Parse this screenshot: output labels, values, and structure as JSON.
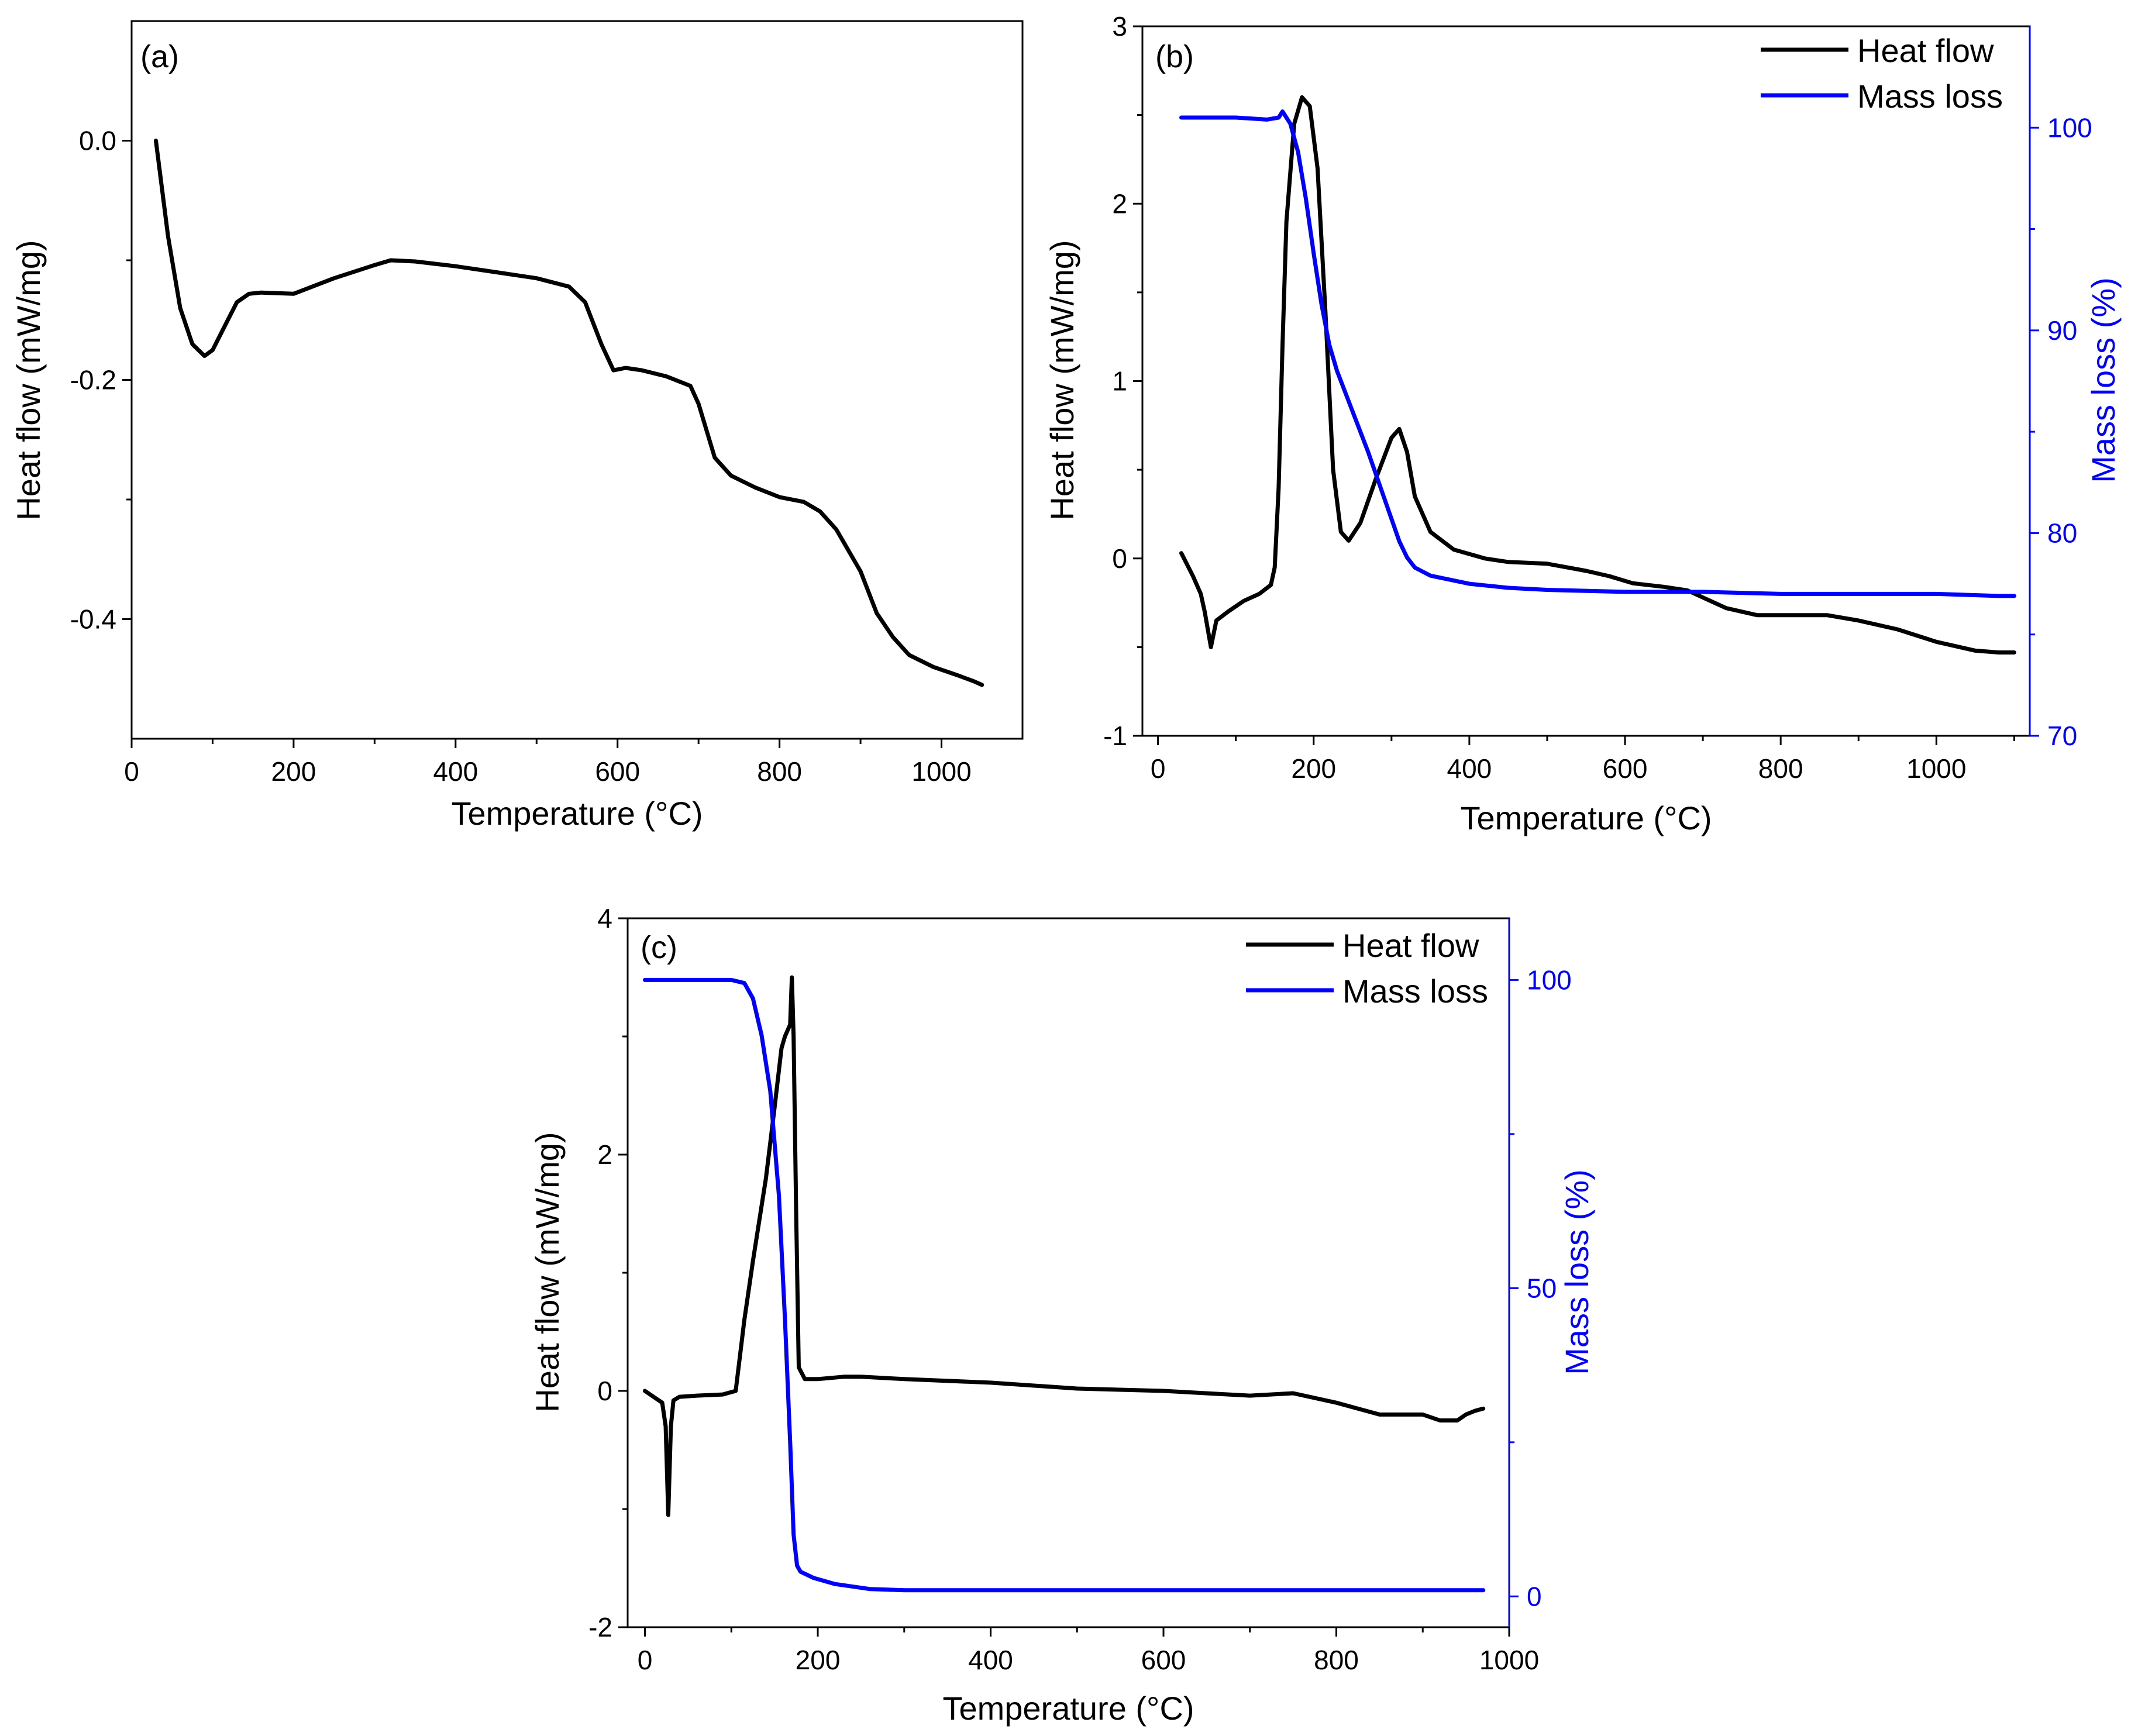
{
  "figure_title": "Thermal analysis (DSC/TGA) panels",
  "colors": {
    "heat_flow": "#000000",
    "mass_loss": "#0000FF",
    "axis": "#000000"
  },
  "chart_data": [
    {
      "type": "line",
      "panel_label": "(a)",
      "xlabel": "Temperature (°C)",
      "ylabel": "Heat flow (mW/mg)",
      "xlim": [
        0,
        1100
      ],
      "ylim": [
        -0.5,
        0.1
      ],
      "xticks": [
        0,
        200,
        400,
        600,
        800,
        1000
      ],
      "xtick_labels": [
        "0",
        "200",
        "400",
        "600",
        "800",
        "1000"
      ],
      "yticks": [
        0.0,
        -0.2,
        -0.4
      ],
      "ytick_labels": [
        "0.0",
        "-0.2",
        "-0.4"
      ],
      "legend": [],
      "series": [
        {
          "name": "Heat flow",
          "axis": "left",
          "color": "#000000",
          "x": [
            30,
            45,
            60,
            75,
            90,
            100,
            115,
            130,
            145,
            160,
            200,
            250,
            300,
            320,
            350,
            400,
            450,
            500,
            540,
            560,
            580,
            595,
            610,
            630,
            660,
            690,
            700,
            720,
            740,
            770,
            800,
            830,
            850,
            870,
            900,
            920,
            940,
            960,
            990,
            1020,
            1040,
            1050
          ],
          "y": [
            0.0,
            -0.08,
            -0.14,
            -0.17,
            -0.18,
            -0.175,
            -0.155,
            -0.135,
            -0.128,
            -0.127,
            -0.128,
            -0.115,
            -0.104,
            -0.1,
            -0.101,
            -0.105,
            -0.11,
            -0.115,
            -0.122,
            -0.135,
            -0.17,
            -0.192,
            -0.19,
            -0.192,
            -0.197,
            -0.205,
            -0.22,
            -0.265,
            -0.28,
            -0.29,
            -0.298,
            -0.302,
            -0.31,
            -0.325,
            -0.36,
            -0.395,
            -0.415,
            -0.43,
            -0.44,
            -0.447,
            -0.452,
            -0.455
          ]
        }
      ]
    },
    {
      "type": "line",
      "panel_label": "(b)",
      "xlabel": "Temperature (°C)",
      "ylabel": "Heat flow (mW/mg)",
      "y2label": "Mass loss (%)",
      "xlim": [
        -20,
        1120
      ],
      "ylim": [
        -1,
        3
      ],
      "y2lim": [
        70,
        105
      ],
      "xticks": [
        0,
        200,
        400,
        600,
        800,
        1000
      ],
      "xtick_labels": [
        "0",
        "200",
        "400",
        "600",
        "800",
        "1000"
      ],
      "yticks": [
        -1,
        0,
        1,
        2,
        3
      ],
      "ytick_labels": [
        "-1",
        "0",
        "1",
        "2",
        "3"
      ],
      "y2ticks": [
        70,
        80,
        90,
        100
      ],
      "y2tick_labels": [
        "70",
        "80",
        "90",
        "100"
      ],
      "legend": [
        "Heat flow",
        "Mass loss"
      ],
      "series": [
        {
          "name": "Heat flow",
          "axis": "left",
          "color": "#000000",
          "x": [
            30,
            45,
            55,
            60,
            68,
            75,
            90,
            110,
            130,
            145,
            150,
            155,
            160,
            165,
            175,
            185,
            195,
            205,
            215,
            225,
            235,
            245,
            260,
            280,
            300,
            310,
            320,
            330,
            350,
            380,
            420,
            450,
            500,
            550,
            580,
            610,
            650,
            680,
            700,
            730,
            770,
            820,
            860,
            900,
            950,
            1000,
            1050,
            1080,
            1100
          ],
          "y": [
            0.03,
            -0.1,
            -0.2,
            -0.3,
            -0.5,
            -0.35,
            -0.3,
            -0.24,
            -0.2,
            -0.15,
            -0.05,
            0.4,
            1.2,
            1.9,
            2.45,
            2.6,
            2.55,
            2.2,
            1.4,
            0.5,
            0.15,
            0.1,
            0.2,
            0.45,
            0.68,
            0.73,
            0.6,
            0.35,
            0.15,
            0.05,
            0.0,
            -0.02,
            -0.03,
            -0.07,
            -0.1,
            -0.14,
            -0.16,
            -0.18,
            -0.22,
            -0.28,
            -0.32,
            -0.32,
            -0.32,
            -0.35,
            -0.4,
            -0.47,
            -0.52,
            -0.53,
            -0.53
          ]
        },
        {
          "name": "Mass loss",
          "axis": "right",
          "color": "#0000FF",
          "x": [
            30,
            100,
            140,
            155,
            160,
            170,
            180,
            190,
            200,
            210,
            220,
            230,
            250,
            270,
            290,
            310,
            320,
            330,
            350,
            400,
            450,
            500,
            600,
            700,
            800,
            900,
            1000,
            1080,
            1100
          ],
          "y": [
            100.5,
            100.5,
            100.4,
            100.5,
            100.8,
            100.2,
            98.8,
            96.5,
            93.8,
            91.3,
            89.3,
            88.0,
            86.0,
            84.0,
            81.8,
            79.6,
            78.8,
            78.3,
            77.9,
            77.5,
            77.3,
            77.2,
            77.1,
            77.1,
            77.0,
            77.0,
            77.0,
            76.9,
            76.9
          ]
        }
      ]
    },
    {
      "type": "line",
      "panel_label": "(c)",
      "xlabel": "Temperature (°C)",
      "ylabel": "Heat flow (mW/mg)",
      "y2label": "Mass loss (%)",
      "xlim": [
        -20,
        1000
      ],
      "ylim": [
        -2,
        4
      ],
      "y2lim": [
        -5,
        110
      ],
      "xticks": [
        0,
        200,
        400,
        600,
        800,
        1000
      ],
      "xtick_labels": [
        "0",
        "200",
        "400",
        "600",
        "800",
        "1000"
      ],
      "yticks": [
        -2,
        0,
        2,
        4
      ],
      "ytick_labels": [
        "-2",
        "0",
        "2",
        "4"
      ],
      "y2ticks": [
        0,
        50,
        100
      ],
      "y2tick_labels": [
        "0",
        "50",
        "100"
      ],
      "legend": [
        "Heat flow",
        "Mass loss"
      ],
      "series": [
        {
          "name": "Heat flow",
          "axis": "left",
          "color": "#000000",
          "x": [
            0,
            10,
            20,
            24,
            27,
            30,
            33,
            40,
            60,
            90,
            105,
            110,
            115,
            125,
            140,
            150,
            158,
            162,
            165,
            168,
            170,
            172,
            175,
            178,
            185,
            200,
            230,
            250,
            300,
            400,
            500,
            600,
            700,
            750,
            800,
            850,
            900,
            920,
            940,
            950,
            960,
            970
          ],
          "y": [
            0.0,
            -0.05,
            -0.1,
            -0.3,
            -1.05,
            -0.3,
            -0.08,
            -0.05,
            -0.04,
            -0.03,
            0.0,
            0.3,
            0.6,
            1.1,
            1.8,
            2.4,
            2.9,
            3.0,
            3.05,
            3.1,
            3.5,
            3.0,
            1.5,
            0.2,
            0.1,
            0.1,
            0.12,
            0.12,
            0.1,
            0.07,
            0.02,
            0.0,
            -0.04,
            -0.02,
            -0.1,
            -0.2,
            -0.2,
            -0.25,
            -0.25,
            -0.2,
            -0.17,
            -0.15
          ],
          "note": "sharp endotherm near 30 °C and exotherm peak near 170 °C"
        },
        {
          "name": "Mass loss",
          "axis": "right",
          "color": "#0000FF",
          "x": [
            0,
            100,
            115,
            125,
            135,
            145,
            155,
            162,
            168,
            172,
            176,
            180,
            195,
            220,
            260,
            300,
            400,
            600,
            800,
            970
          ],
          "y": [
            100,
            100,
            99.5,
            97,
            91,
            82,
            65,
            45,
            25,
            10,
            5,
            4,
            3,
            2,
            1.2,
            1,
            1,
            1,
            1,
            1
          ]
        }
      ]
    }
  ]
}
